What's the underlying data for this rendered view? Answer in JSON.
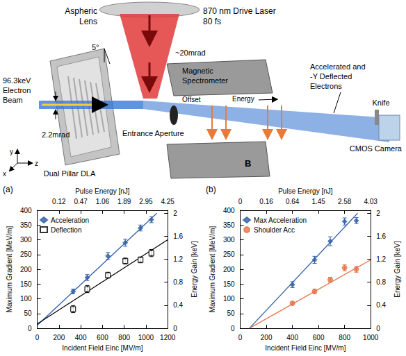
{
  "diagram": {
    "lens": [
      "Aspheric",
      "Lens"
    ],
    "laser": [
      "870 nm Drive Laser",
      "80 fs"
    ],
    "angle": "5°",
    "beam": [
      "96.3keV",
      "Electron",
      "Beam"
    ],
    "beam_divergence": "2.2mrad",
    "cone_divergence": "~20mrad",
    "spectrometer": [
      "Magnetic",
      "Spectrometer"
    ],
    "offset": "Offset",
    "energy": "Energy",
    "field": "B",
    "aperture": "Entrance Aperture",
    "dla": "Dual Pillar DLA",
    "electrons": [
      "Accelerated and",
      "-Y Deflected",
      "Electrons"
    ],
    "knife": "Knife",
    "camera": "CMOS Camera",
    "axes": {
      "y": "y",
      "x": "x",
      "z": "z"
    }
  },
  "chart_data": [
    {
      "type": "scatter",
      "panel": "(a)",
      "xlabel": "Incident Field Einc [MV/m]",
      "x2label": "Pulse Energy [nJ]",
      "ylabel": "Maximum Gradient [MeV/m]",
      "y2label": "Energy Gain [keV]",
      "xlim": [
        0,
        1200
      ],
      "xticks": [
        0,
        200,
        400,
        600,
        800,
        1000,
        1200
      ],
      "x2lim": [
        0,
        1200
      ],
      "x2ticks": [
        {
          "value": 200,
          "label": "0.12"
        },
        {
          "value": 400,
          "label": "0.47"
        },
        {
          "value": 600,
          "label": "1.06"
        },
        {
          "value": 800,
          "label": "1.89"
        },
        {
          "value": 1000,
          "label": "2.95"
        },
        {
          "value": 1200,
          "label": "4.25"
        }
      ],
      "ylim": [
        0,
        400
      ],
      "yticks": [
        0,
        50,
        100,
        150,
        200,
        250,
        300,
        350,
        400
      ],
      "y2lim": [
        0,
        2.05
      ],
      "y2ticks": [
        0,
        0.4,
        0.8,
        1.2,
        1.6,
        2
      ],
      "grid": false,
      "legend": "upper left",
      "series": [
        {
          "name": "Acceleration",
          "color": "#2e5fa8",
          "marker": "diamond",
          "x": [
            330,
            460,
            650,
            810,
            950,
            1050
          ],
          "values": [
            125,
            172,
            245,
            290,
            340,
            368
          ],
          "errors": [
            8,
            10,
            12,
            12,
            10,
            10
          ]
        },
        {
          "name": "Deflection",
          "color": "#000000",
          "marker": "square_open",
          "x": [
            330,
            460,
            650,
            810,
            950,
            1050
          ],
          "values": [
            65,
            133,
            180,
            228,
            232,
            255
          ],
          "errors": [
            12,
            12,
            10,
            10,
            10,
            12
          ]
        }
      ],
      "fits": [
        {
          "color": "#2e5fa8",
          "x": [
            0,
            1100
          ],
          "values": [
            10,
            390
          ]
        },
        {
          "color": "#000000",
          "x": [
            0,
            1200
          ],
          "values": [
            15,
            300
          ]
        }
      ]
    },
    {
      "type": "scatter",
      "panel": "(b)",
      "xlabel": "Incident Field Einc [MV/m]",
      "x2label": "Pulse Energy [nJ]",
      "ylabel": "Maximum Gradient [MeV/m]",
      "y2label": "Energy Gain [keV]",
      "xlim": [
        0,
        1000
      ],
      "xticks": [
        0,
        200,
        400,
        600,
        800,
        1000
      ],
      "x2lim": [
        0,
        1000
      ],
      "x2ticks": [
        0,
        {
          "value": 200,
          "label": "0.16"
        },
        {
          "value": 400,
          "label": "0.64"
        },
        {
          "value": 600,
          "label": "1.45"
        },
        {
          "value": 800,
          "label": "2.58"
        },
        {
          "value": 1000,
          "label": "4.03"
        }
      ],
      "ylim": [
        0,
        400
      ],
      "yticks": [
        0,
        50,
        100,
        150,
        200,
        250,
        300,
        350,
        400
      ],
      "y2lim": [
        0,
        2.05
      ],
      "y2ticks": [
        0,
        0.4,
        0.8,
        1.2,
        1.6,
        2
      ],
      "grid": false,
      "legend": "upper left",
      "series": [
        {
          "name": "Max Acceleration",
          "color": "#2e5fa8",
          "marker": "diamond",
          "x": [
            400,
            570,
            690,
            800,
            890
          ],
          "values": [
            148,
            232,
            295,
            362,
            365
          ],
          "errors": [
            10,
            12,
            15,
            12,
            10
          ]
        },
        {
          "name": "Shoulder Acc",
          "color": "#e8734a",
          "marker": "circle",
          "x": [
            400,
            570,
            690,
            800,
            890
          ],
          "values": [
            85,
            125,
            165,
            205,
            200
          ],
          "errors": [
            5,
            8,
            8,
            10,
            10
          ]
        }
      ],
      "fits": [
        {
          "color": "#2e5fa8",
          "x": [
            70,
            900
          ],
          "values": [
            0,
            390
          ]
        },
        {
          "color": "#e8734a",
          "x": [
            70,
            1000
          ],
          "values": [
            0,
            232
          ]
        }
      ]
    }
  ]
}
